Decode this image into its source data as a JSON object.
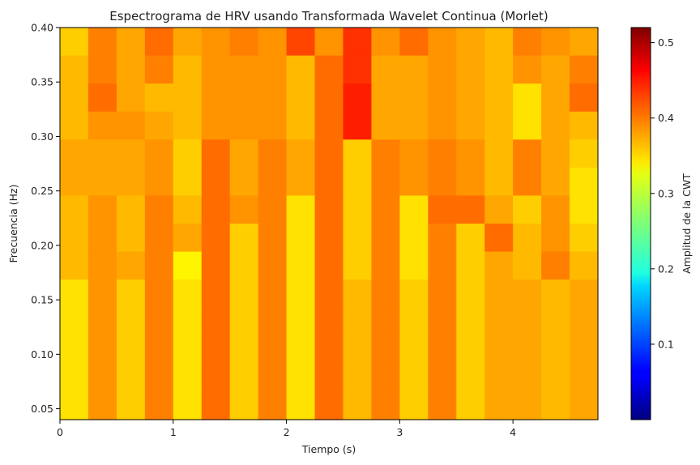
{
  "chart_data": {
    "type": "heatmap",
    "title": "Espectrograma de HRV usando Transformada Wavelet Continua (Morlet)",
    "xlabel": "Tiempo (s)",
    "ylabel": "Frecuencia (Hz)",
    "xlim": [
      0,
      4.75
    ],
    "ylim": [
      0.04,
      0.4
    ],
    "x_ticks": [
      0,
      1,
      2,
      3,
      4
    ],
    "y_ticks": [
      0.05,
      0.1,
      0.15,
      0.2,
      0.25,
      0.3,
      0.35,
      0.4
    ],
    "x_tick_labels": [
      "0",
      "1",
      "2",
      "3",
      "4"
    ],
    "y_tick_labels": [
      "0.05",
      "0.10",
      "0.15",
      "0.20",
      "0.25",
      "0.30",
      "0.35",
      "0.40"
    ],
    "colormap": "jet",
    "colorbar": {
      "label": "Amplitud de la CWT",
      "range": [
        0.0,
        0.52
      ],
      "ticks": [
        0.1,
        0.2,
        0.3,
        0.4,
        0.5
      ],
      "tick_labels": [
        "0.1",
        "0.2",
        "0.3",
        "0.4",
        "0.5"
      ]
    },
    "columns": 19,
    "rows_top_to_bottom": 14,
    "grid": false,
    "values": [
      [
        0.35,
        0.39,
        0.37,
        0.4,
        0.37,
        0.38,
        0.39,
        0.38,
        0.42,
        0.38,
        0.43,
        0.38,
        0.4,
        0.38,
        0.37,
        0.36,
        0.39,
        0.38,
        0.37
      ],
      [
        0.36,
        0.39,
        0.37,
        0.39,
        0.36,
        0.38,
        0.38,
        0.38,
        0.36,
        0.4,
        0.43,
        0.37,
        0.37,
        0.38,
        0.37,
        0.36,
        0.38,
        0.37,
        0.39
      ],
      [
        0.36,
        0.4,
        0.37,
        0.36,
        0.36,
        0.38,
        0.38,
        0.38,
        0.36,
        0.4,
        0.44,
        0.37,
        0.37,
        0.38,
        0.37,
        0.36,
        0.34,
        0.37,
        0.4
      ],
      [
        0.36,
        0.38,
        0.38,
        0.37,
        0.36,
        0.38,
        0.38,
        0.38,
        0.36,
        0.4,
        0.44,
        0.37,
        0.37,
        0.38,
        0.37,
        0.36,
        0.34,
        0.37,
        0.36
      ],
      [
        0.37,
        0.37,
        0.37,
        0.38,
        0.35,
        0.4,
        0.37,
        0.39,
        0.37,
        0.4,
        0.35,
        0.39,
        0.38,
        0.39,
        0.38,
        0.36,
        0.39,
        0.37,
        0.35
      ],
      [
        0.37,
        0.37,
        0.37,
        0.38,
        0.35,
        0.4,
        0.37,
        0.39,
        0.37,
        0.4,
        0.35,
        0.39,
        0.38,
        0.39,
        0.38,
        0.36,
        0.39,
        0.37,
        0.34
      ],
      [
        0.36,
        0.38,
        0.36,
        0.39,
        0.36,
        0.4,
        0.38,
        0.39,
        0.34,
        0.4,
        0.35,
        0.39,
        0.34,
        0.4,
        0.4,
        0.37,
        0.35,
        0.38,
        0.34
      ],
      [
        0.36,
        0.38,
        0.36,
        0.39,
        0.37,
        0.4,
        0.35,
        0.39,
        0.34,
        0.4,
        0.35,
        0.39,
        0.34,
        0.39,
        0.35,
        0.4,
        0.36,
        0.38,
        0.35
      ],
      [
        0.36,
        0.38,
        0.37,
        0.39,
        0.33,
        0.4,
        0.35,
        0.39,
        0.34,
        0.4,
        0.35,
        0.39,
        0.34,
        0.39,
        0.35,
        0.37,
        0.36,
        0.39,
        0.36
      ],
      [
        0.34,
        0.38,
        0.35,
        0.39,
        0.34,
        0.4,
        0.35,
        0.39,
        0.34,
        0.4,
        0.36,
        0.39,
        0.35,
        0.39,
        0.35,
        0.37,
        0.37,
        0.36,
        0.37
      ],
      [
        0.34,
        0.38,
        0.35,
        0.39,
        0.34,
        0.4,
        0.35,
        0.39,
        0.34,
        0.4,
        0.36,
        0.39,
        0.35,
        0.39,
        0.35,
        0.37,
        0.37,
        0.36,
        0.37
      ],
      [
        0.34,
        0.38,
        0.35,
        0.39,
        0.34,
        0.4,
        0.35,
        0.39,
        0.34,
        0.4,
        0.36,
        0.39,
        0.35,
        0.39,
        0.35,
        0.37,
        0.37,
        0.36,
        0.37
      ],
      [
        0.34,
        0.38,
        0.35,
        0.39,
        0.34,
        0.4,
        0.35,
        0.39,
        0.34,
        0.4,
        0.36,
        0.39,
        0.35,
        0.39,
        0.35,
        0.37,
        0.37,
        0.36,
        0.37
      ],
      [
        0.34,
        0.38,
        0.35,
        0.39,
        0.34,
        0.4,
        0.35,
        0.39,
        0.34,
        0.4,
        0.36,
        0.39,
        0.35,
        0.39,
        0.35,
        0.37,
        0.37,
        0.36,
        0.37
      ]
    ]
  }
}
